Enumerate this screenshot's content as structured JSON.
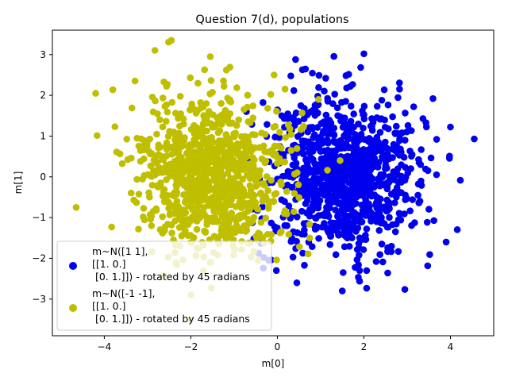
{
  "chart_data": {
    "type": "scatter",
    "title": "Question 7(d), populations",
    "xlabel": "m[0]",
    "ylabel": "m[1]",
    "xlim": [
      -5.2,
      5.0
    ],
    "ylim": [
      -3.9,
      3.6
    ],
    "xticks": [
      -4,
      -2,
      0,
      2,
      4
    ],
    "yticks": [
      -3,
      -2,
      -1,
      0,
      1,
      2,
      3
    ],
    "grid": false,
    "legend_position": "lower-left",
    "series": [
      {
        "name_lines": [
          "m~N([1 1],",
          "[[1. 0.]",
          " [0. 1.]]) - rotated by 45 radians"
        ],
        "color": "#0000ee",
        "mean": [
          1.5,
          0.0
        ],
        "spread": [
          0.85,
          0.95
        ],
        "count": 1000,
        "notable_points": [
          [
            4.55,
            0.93
          ],
          [
            2.0,
            3.02
          ],
          [
            0.42,
            2.88
          ],
          [
            -0.2,
            -2.05
          ],
          [
            1.5,
            -2.8
          ],
          [
            1.9,
            -2.56
          ],
          [
            0.45,
            -2.6
          ],
          [
            3.9,
            -1.6
          ],
          [
            3.15,
            1.72
          ]
        ]
      },
      {
        "name_lines": [
          "m~N([-1 -1],",
          "[[1. 0.]",
          " [0. 1.]]) - rotated by 45 radians"
        ],
        "color": "#bfbf00",
        "mean": [
          -1.5,
          0.0
        ],
        "spread": [
          0.85,
          0.95
        ],
        "count": 1000,
        "notable_points": [
          [
            -2.45,
            3.35
          ],
          [
            -4.65,
            -0.75
          ],
          [
            -1.55,
            2.95
          ],
          [
            -2.0,
            -2.9
          ],
          [
            -2.0,
            -3.5
          ],
          [
            0.95,
            1.9
          ],
          [
            1.45,
            0.4
          ],
          [
            -4.2,
            2.05
          ]
        ]
      }
    ]
  }
}
